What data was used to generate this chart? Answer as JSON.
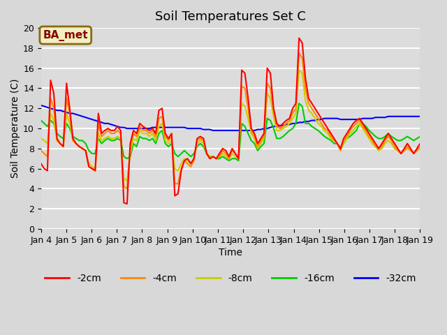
{
  "title": "Soil Temperatures Set C",
  "xlabel": "Time",
  "ylabel": "Soil Temperature (C)",
  "ylim": [
    0,
    20
  ],
  "xlim": [
    0,
    360
  ],
  "background_color": "#e8e8e8",
  "plot_bg_color": "#e0e0e0",
  "annotation_text": "BA_met",
  "annotation_color": "#8B0000",
  "annotation_bg": "#f0f0c0",
  "legend_entries": [
    "-2cm",
    "-4cm",
    "-8cm",
    "-16cm",
    "-32cm"
  ],
  "colors": {
    "-2cm": "#ff0000",
    "-4cm": "#ff8800",
    "-8cm": "#cccc00",
    "-16cm": "#00cc00",
    "-32cm": "#0000ff"
  },
  "x_tick_labels": [
    "Jan 4",
    "Jan 5",
    "Jan 6",
    "Jan 7",
    "Jan 8",
    "Jan 9",
    "Jan 10",
    "Jan 11",
    "Jan 12",
    "Jan 13",
    "Jan 14",
    "Jan 15",
    "Jan 16",
    "Jan 17",
    "Jan 18",
    "Jan 19"
  ],
  "series": {
    "-2cm": [
      6.5,
      6.0,
      5.8,
      14.8,
      13.5,
      9.0,
      8.5,
      8.2,
      14.5,
      12.0,
      9.0,
      8.5,
      8.2,
      8.0,
      7.8,
      6.2,
      6.0,
      5.8,
      11.5,
      9.5,
      9.8,
      10.0,
      9.8,
      9.8,
      10.2,
      9.8,
      2.6,
      2.5,
      8.5,
      9.8,
      9.5,
      10.5,
      10.2,
      10.0,
      9.8,
      10.0,
      9.5,
      11.8,
      12.0,
      9.5,
      9.0,
      9.5,
      3.3,
      3.5,
      5.8,
      6.8,
      7.0,
      6.5,
      7.0,
      9.0,
      9.2,
      9.0,
      7.5,
      7.0,
      7.2,
      7.0,
      7.5,
      8.0,
      7.8,
      7.2,
      8.0,
      7.5,
      7.0,
      15.8,
      15.5,
      13.0,
      10.0,
      9.5,
      8.5,
      9.0,
      9.5,
      16.0,
      15.5,
      12.0,
      10.5,
      10.2,
      10.5,
      10.8,
      11.0,
      12.0,
      12.5,
      19.0,
      18.5,
      15.0,
      13.0,
      12.5,
      12.0,
      11.5,
      11.0,
      10.5,
      10.0,
      9.5,
      9.0,
      8.5,
      8.0,
      9.0,
      9.5,
      10.0,
      10.5,
      10.8,
      11.0,
      10.5,
      10.0,
      9.5,
      9.0,
      8.5,
      8.0,
      8.5,
      9.0,
      9.5,
      9.0,
      8.5,
      8.0,
      7.5,
      8.0,
      8.5,
      8.0,
      7.5,
      8.0,
      8.5,
      8.0
    ],
    "-4cm": [
      7.8,
      7.5,
      7.2,
      13.0,
      12.0,
      8.8,
      8.5,
      8.2,
      13.0,
      11.5,
      8.8,
      8.5,
      8.2,
      8.0,
      7.8,
      6.2,
      6.0,
      5.8,
      10.5,
      9.2,
      9.5,
      9.8,
      9.5,
      9.5,
      9.8,
      9.5,
      4.2,
      4.0,
      8.0,
      9.5,
      9.2,
      10.2,
      9.8,
      9.8,
      9.5,
      9.8,
      9.2,
      11.0,
      11.2,
      9.2,
      8.8,
      9.2,
      4.5,
      4.5,
      6.0,
      6.8,
      6.5,
      6.2,
      6.8,
      8.8,
      9.0,
      8.8,
      7.5,
      7.0,
      7.2,
      7.0,
      7.2,
      7.8,
      7.5,
      7.0,
      7.8,
      7.5,
      7.0,
      14.2,
      14.0,
      12.0,
      9.8,
      9.2,
      8.2,
      8.8,
      9.2,
      14.5,
      14.0,
      11.8,
      10.2,
      10.0,
      10.2,
      10.5,
      10.8,
      11.5,
      12.0,
      17.5,
      17.0,
      14.0,
      12.5,
      12.0,
      11.5,
      11.0,
      10.5,
      10.0,
      9.8,
      9.2,
      8.8,
      8.5,
      7.8,
      8.8,
      9.2,
      9.8,
      10.2,
      10.5,
      10.8,
      10.2,
      9.8,
      9.2,
      8.8,
      8.2,
      8.0,
      8.2,
      8.8,
      9.2,
      8.8,
      8.2,
      7.8,
      7.5,
      7.8,
      8.2,
      7.8,
      7.5,
      7.8,
      8.2,
      7.8
    ],
    "-8cm": [
      9.0,
      8.8,
      8.5,
      11.5,
      10.8,
      8.8,
      8.5,
      8.2,
      11.5,
      10.5,
      8.8,
      8.5,
      8.2,
      8.0,
      7.8,
      6.5,
      6.2,
      6.0,
      9.5,
      8.8,
      9.0,
      9.2,
      9.0,
      9.0,
      9.2,
      9.0,
      5.0,
      4.8,
      7.5,
      9.0,
      8.8,
      9.8,
      9.5,
      9.5,
      9.2,
      9.5,
      8.8,
      10.2,
      10.5,
      8.8,
      8.5,
      8.8,
      6.0,
      5.8,
      6.5,
      7.0,
      6.8,
      6.5,
      7.0,
      8.5,
      8.8,
      8.5,
      7.5,
      7.2,
      7.2,
      7.0,
      7.2,
      7.5,
      7.2,
      7.0,
      7.5,
      7.2,
      7.0,
      12.5,
      12.2,
      11.0,
      9.5,
      9.0,
      8.0,
      8.5,
      9.0,
      13.5,
      13.0,
      11.2,
      9.8,
      9.8,
      10.0,
      10.2,
      10.5,
      11.0,
      11.5,
      15.8,
      15.5,
      12.8,
      11.8,
      11.5,
      11.0,
      10.5,
      10.2,
      9.8,
      9.5,
      9.0,
      8.8,
      8.5,
      7.8,
      8.5,
      9.0,
      9.5,
      9.8,
      10.2,
      10.5,
      10.0,
      9.5,
      9.0,
      8.5,
      8.2,
      7.8,
      8.0,
      8.5,
      8.8,
      8.5,
      8.0,
      7.8,
      7.5,
      7.8,
      8.0,
      7.8,
      7.5,
      7.8,
      8.0,
      7.8
    ],
    "-16cm": [
      10.8,
      10.5,
      10.2,
      10.8,
      10.5,
      9.5,
      9.2,
      9.0,
      10.5,
      10.0,
      9.2,
      9.0,
      8.8,
      8.8,
      8.5,
      7.8,
      7.5,
      7.5,
      9.0,
      8.5,
      8.8,
      9.0,
      8.8,
      8.8,
      9.0,
      8.8,
      7.2,
      7.0,
      7.2,
      8.5,
      8.2,
      9.2,
      9.0,
      9.0,
      8.8,
      9.0,
      8.5,
      9.5,
      9.8,
      8.5,
      8.2,
      8.5,
      7.5,
      7.2,
      7.5,
      7.8,
      7.5,
      7.2,
      7.5,
      8.2,
      8.5,
      8.2,
      7.5,
      7.2,
      7.2,
      7.0,
      7.0,
      7.2,
      7.0,
      6.8,
      7.0,
      7.0,
      6.8,
      10.5,
      10.2,
      9.5,
      8.8,
      8.5,
      7.8,
      8.2,
      8.5,
      11.0,
      10.8,
      10.0,
      9.0,
      9.0,
      9.2,
      9.5,
      9.8,
      10.0,
      10.5,
      12.5,
      12.2,
      10.5,
      10.5,
      10.2,
      10.0,
      9.8,
      9.5,
      9.2,
      9.0,
      8.8,
      8.5,
      8.5,
      8.0,
      8.5,
      9.0,
      9.2,
      9.5,
      9.8,
      10.5,
      10.5,
      10.2,
      9.8,
      9.5,
      9.2,
      9.0,
      9.0,
      9.2,
      9.5,
      9.2,
      9.0,
      8.8,
      8.8,
      9.0,
      9.2,
      9.0,
      8.8,
      9.0,
      9.2,
      9.0
    ],
    "-32cm": [
      12.3,
      12.2,
      12.1,
      12.0,
      11.9,
      11.8,
      11.8,
      11.7,
      11.6,
      11.5,
      11.5,
      11.4,
      11.3,
      11.2,
      11.1,
      11.0,
      10.9,
      10.8,
      10.7,
      10.6,
      10.5,
      10.5,
      10.4,
      10.3,
      10.2,
      10.1,
      10.1,
      10.0,
      10.0,
      10.0,
      10.0,
      10.0,
      10.0,
      10.0,
      10.0,
      10.1,
      10.1,
      10.1,
      10.1,
      10.1,
      10.1,
      10.1,
      10.1,
      10.1,
      10.1,
      10.1,
      10.0,
      10.0,
      10.0,
      10.0,
      10.0,
      9.9,
      9.9,
      9.9,
      9.8,
      9.8,
      9.8,
      9.8,
      9.8,
      9.8,
      9.8,
      9.8,
      9.8,
      9.8,
      9.8,
      9.8,
      9.8,
      9.8,
      9.9,
      9.9,
      10.0,
      10.0,
      10.1,
      10.2,
      10.2,
      10.3,
      10.3,
      10.4,
      10.4,
      10.5,
      10.5,
      10.6,
      10.6,
      10.7,
      10.7,
      10.8,
      10.8,
      10.9,
      10.9,
      11.0,
      11.0,
      11.0,
      11.0,
      11.0,
      10.9,
      10.9,
      10.9,
      10.9,
      10.9,
      10.9,
      10.9,
      11.0,
      11.0,
      11.0,
      11.0,
      11.1,
      11.1,
      11.1,
      11.1,
      11.2,
      11.2,
      11.2,
      11.2,
      11.2,
      11.2,
      11.2,
      11.2,
      11.2,
      11.2,
      11.2
    ]
  }
}
